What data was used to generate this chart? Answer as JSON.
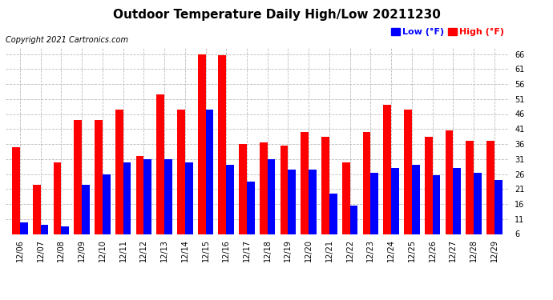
{
  "title": "Outdoor Temperature Daily High/Low 20211230",
  "copyright": "Copyright 2021 Cartronics.com",
  "dates": [
    "12/06",
    "12/07",
    "12/08",
    "12/09",
    "12/10",
    "12/11",
    "12/12",
    "12/13",
    "12/14",
    "12/15",
    "12/16",
    "12/17",
    "12/18",
    "12/19",
    "12/20",
    "12/21",
    "12/22",
    "12/23",
    "12/24",
    "12/25",
    "12/26",
    "12/27",
    "12/28",
    "12/29"
  ],
  "high": [
    35.0,
    22.5,
    30.0,
    44.0,
    44.0,
    47.5,
    32.0,
    52.5,
    47.5,
    66.0,
    65.5,
    36.0,
    36.5,
    35.5,
    40.0,
    38.5,
    30.0,
    40.0,
    49.0,
    47.5,
    38.5,
    40.5,
    37.0,
    37.0
  ],
  "low": [
    10.0,
    9.0,
    8.5,
    22.5,
    26.0,
    30.0,
    31.0,
    31.0,
    30.0,
    47.5,
    29.0,
    23.5,
    31.0,
    27.5,
    27.5,
    19.5,
    15.5,
    26.5,
    28.0,
    29.0,
    25.5,
    28.0,
    26.5,
    24.0
  ],
  "ylim": [
    6.0,
    68.0
  ],
  "yticks": [
    6.0,
    11.0,
    16.0,
    21.0,
    26.0,
    31.0,
    36.0,
    41.0,
    46.0,
    51.0,
    56.0,
    61.0,
    66.0
  ],
  "bar_width": 0.38,
  "high_color": "#ff0000",
  "low_color": "#0000ff",
  "bg_color": "#ffffff",
  "grid_color": "#bbbbbb",
  "title_fontsize": 11,
  "tick_fontsize": 7,
  "copyright_fontsize": 7,
  "legend_fontsize": 8
}
